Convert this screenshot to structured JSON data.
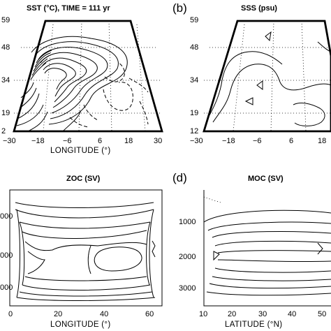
{
  "figure": {
    "panels": [
      {
        "id": "a",
        "letter": "",
        "title": "SST (°C), TIME = 111 yr",
        "x_label": "LONGITUDE (°)",
        "x_ticks": [
          "−30",
          "−18",
          "−6",
          "6",
          "18",
          "30"
        ],
        "y_ticks": [
          "59",
          "48",
          "34",
          "19",
          "2"
        ]
      },
      {
        "id": "b",
        "letter": "(b)",
        "title": "SSS (psu)",
        "x_label": "",
        "x_ticks": [
          "−30",
          "−18",
          "−6",
          "6",
          "18"
        ],
        "y_ticks": [
          "59",
          "48",
          "34",
          "19",
          "12"
        ]
      },
      {
        "id": "c",
        "letter": "",
        "title": "ZOC (SV)",
        "x_label": "LONGITUDE (°)",
        "x_ticks": [
          "0",
          "20",
          "40",
          "60"
        ],
        "y_ticks": [
          "000",
          "000",
          "000"
        ]
      },
      {
        "id": "d",
        "letter": "(d)",
        "title": "MOC (SV)",
        "x_label": "LATITUDE (°N)",
        "x_ticks": [
          "10",
          "20",
          "30",
          "40",
          "50"
        ],
        "y_ticks": [
          "1000",
          "2000",
          "3000"
        ]
      }
    ]
  }
}
